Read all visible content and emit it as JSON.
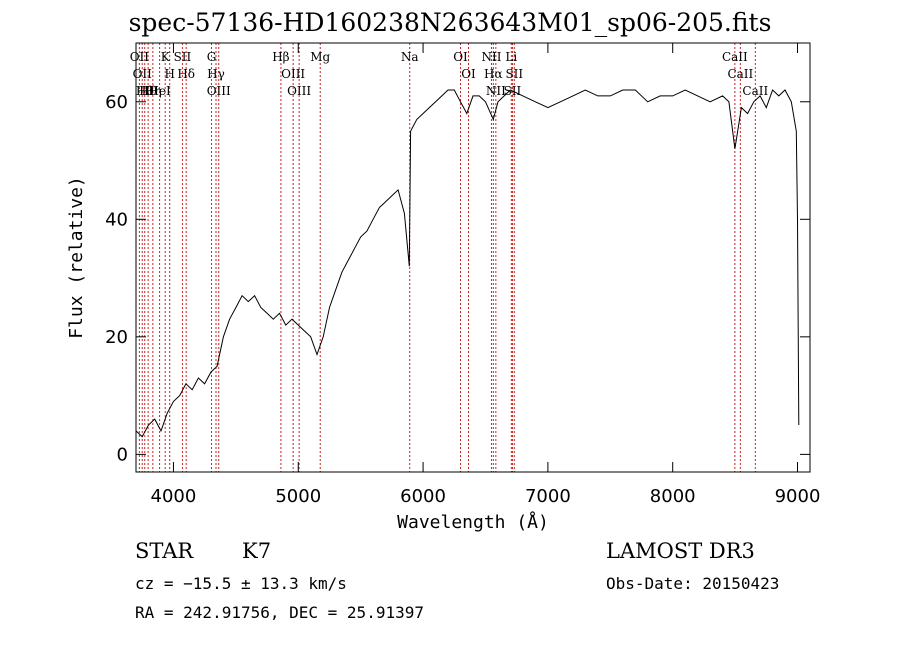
{
  "chart_data": {
    "type": "line",
    "title": "spec-57136-HD160238N263643M01_sp06-205.fits",
    "xlabel": "Wavelength (Å)",
    "ylabel": "Flux (relative)",
    "xlim": [
      3700,
      9100
    ],
    "ylim": [
      -3,
      70
    ],
    "xticks": [
      4000,
      5000,
      6000,
      7000,
      8000,
      9000
    ],
    "yticks": [
      0,
      20,
      40,
      60
    ],
    "grid": false,
    "series": [
      {
        "x": [
          3700,
          3750,
          3800,
          3850,
          3900,
          3950,
          4000,
          4050,
          4100,
          4150,
          4200,
          4250,
          4300,
          4350,
          4400,
          4450,
          4500,
          4550,
          4600,
          4650,
          4700,
          4750,
          4800,
          4850,
          4900,
          4950,
          5000,
          5050,
          5100,
          5150,
          5200,
          5250,
          5300,
          5350,
          5400,
          5450,
          5500,
          5550,
          5600,
          5650,
          5700,
          5750,
          5800,
          5850,
          5890,
          5900,
          5950,
          6000,
          6050,
          6100,
          6150,
          6200,
          6250,
          6300,
          6350,
          6400,
          6450,
          6500,
          6563,
          6600,
          6650,
          6700,
          6800,
          6900,
          7000,
          7100,
          7200,
          7300,
          7400,
          7500,
          7600,
          7700,
          7800,
          7900,
          8000,
          8100,
          8200,
          8300,
          8400,
          8450,
          8498,
          8550,
          8600,
          8650,
          8700,
          8750,
          8800,
          8850,
          8900,
          8950,
          8990,
          9000,
          9010
        ],
        "y": [
          4,
          3,
          5,
          6,
          4,
          7,
          9,
          10,
          12,
          11,
          13,
          12,
          14,
          15,
          20,
          23,
          25,
          27,
          26,
          27,
          25,
          24,
          23,
          24,
          22,
          23,
          22,
          21,
          20,
          17,
          20,
          25,
          28,
          31,
          33,
          35,
          37,
          38,
          40,
          42,
          43,
          44,
          45,
          41,
          32,
          55,
          57,
          58,
          59,
          60,
          61,
          62,
          62,
          60,
          58,
          61,
          61,
          60,
          57,
          60,
          61,
          62,
          61,
          60,
          59,
          60,
          61,
          62,
          61,
          61,
          62,
          62,
          60,
          61,
          61,
          62,
          61,
          60,
          61,
          60,
          52,
          59,
          58,
          60,
          61,
          59,
          62,
          61,
          62,
          60,
          55,
          40,
          5
        ]
      }
    ],
    "lines": [
      {
        "x": 3727,
        "label": "OII"
      },
      {
        "x": 3750,
        "label": "OII"
      },
      {
        "x": 3770,
        "label": "Hθ"
      },
      {
        "x": 3797,
        "label": "Hθ"
      },
      {
        "x": 3835,
        "label": "Hη"
      },
      {
        "x": 3889,
        "label": "HeI"
      },
      {
        "x": 3934,
        "label": "K"
      },
      {
        "x": 3970,
        "label": "H"
      },
      {
        "x": 4072,
        "label": "SII"
      },
      {
        "x": 4102,
        "label": "Hδ"
      },
      {
        "x": 4305,
        "label": "G"
      },
      {
        "x": 4341,
        "label": "Hγ"
      },
      {
        "x": 4363,
        "label": "OIII"
      },
      {
        "x": 4861,
        "label": "Hβ"
      },
      {
        "x": 4959,
        "label": "OIII"
      },
      {
        "x": 5007,
        "label": "OIII"
      },
      {
        "x": 5176,
        "label": "Mg"
      },
      {
        "x": 5893,
        "label": "Na"
      },
      {
        "x": 6300,
        "label": "OI"
      },
      {
        "x": 6364,
        "label": "OI"
      },
      {
        "x": 6548,
        "label": "NII"
      },
      {
        "x": 6563,
        "label": "Hα"
      },
      {
        "x": 6583,
        "label": "NII"
      },
      {
        "x": 6707,
        "label": "Li"
      },
      {
        "x": 6716,
        "label": "SII"
      },
      {
        "x": 6731,
        "label": "SII"
      },
      {
        "x": 8498,
        "label": "CaII"
      },
      {
        "x": 8542,
        "label": "CaII"
      },
      {
        "x": 8662,
        "label": "CaII"
      }
    ]
  },
  "info": {
    "object_class": "STAR",
    "subclass": "K7",
    "survey": "LAMOST DR3",
    "cz": "cz = −15.5 ± 13.3 km/s",
    "obs_date": "Obs-Date: 20150423",
    "coords": "RA = 242.91756, DEC =  25.91397"
  }
}
